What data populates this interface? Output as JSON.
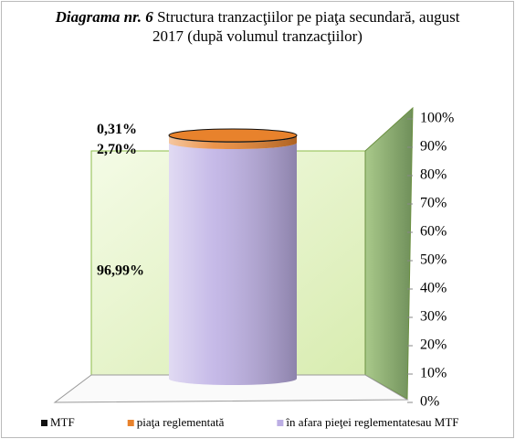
{
  "chart_data": {
    "type": "stacked_bar_3d",
    "title_lead": "Diagrama nr. 6",
    "title": "Structura tranzacţiilor pe piaţa secundară, august 2017 (după volumul tranzacţiilor)",
    "categories": [
      null
    ],
    "series": [
      {
        "name": "MTF",
        "color": "#111111",
        "values": [
          0.31
        ],
        "value_labels": [
          "0,31%"
        ]
      },
      {
        "name": "piaţa reglementată",
        "color": "#e8822c",
        "values": [
          2.7
        ],
        "value_labels": [
          "2,70%"
        ]
      },
      {
        "name": "în afara pieţei reglementatesau MTF",
        "color": "#bcaee4",
        "values": [
          96.99
        ],
        "value_labels": [
          "96,99%"
        ]
      }
    ],
    "ylim": [
      0,
      100
    ],
    "yticks": [
      {
        "value": 0,
        "label": "0%"
      },
      {
        "value": 10,
        "label": "10%"
      },
      {
        "value": 20,
        "label": "20%"
      },
      {
        "value": 30,
        "label": "30%"
      },
      {
        "value": 40,
        "label": "40%"
      },
      {
        "value": 50,
        "label": "50%"
      },
      {
        "value": 60,
        "label": "60%"
      },
      {
        "value": 70,
        "label": "70%"
      },
      {
        "value": 80,
        "label": "80%"
      },
      {
        "value": 90,
        "label": "90%"
      },
      {
        "value": 100,
        "label": "100%"
      }
    ],
    "legend": "bottom"
  }
}
